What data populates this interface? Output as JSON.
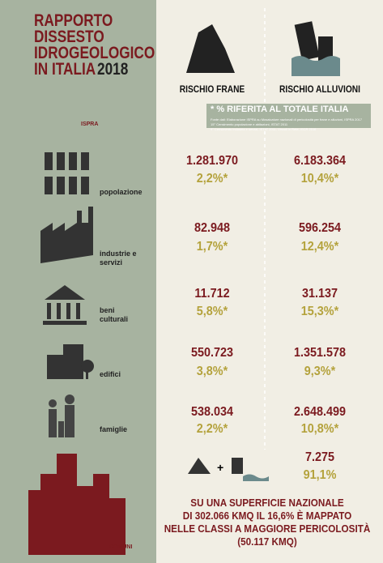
{
  "header": {
    "title_lines": [
      "RAPPORTO",
      "DISSESTO",
      "IDROGEOLOGICO",
      "IN ITALIA"
    ],
    "year": "2018",
    "logo": "ISPRA"
  },
  "columns": [
    "RISCHIO FRANE",
    "RISCHIO ALLUVIONI"
  ],
  "note": {
    "title": "* % RIFERITA AL TOTALE ITALIA",
    "sources": [
      "Fonte dati: Elaborazione ISPRA su Mosaicature nazionali di pericolosità per frane e alluvioni, ISPRA 2017",
      "15° Censimento popolazione e abitazioni, ISTAT 2011",
      "9° Censimento industria e servizi, ISTAT 2011; Vincoli in Rete, ISCR 2016"
    ]
  },
  "rows": [
    {
      "label": [
        "popolazione"
      ],
      "frane": {
        "value": "1.281.970",
        "pct": "2,2%*"
      },
      "alluvioni": {
        "value": "6.183.364",
        "pct": "10,4%*"
      }
    },
    {
      "label": [
        "industrie e",
        "servizi"
      ],
      "frane": {
        "value": "82.948",
        "pct": "1,7%*"
      },
      "alluvioni": {
        "value": "596.254",
        "pct": "12,4%*"
      }
    },
    {
      "label": [
        "beni",
        "culturali"
      ],
      "frane": {
        "value": "11.712",
        "pct": "5,8%*"
      },
      "alluvioni": {
        "value": "31.137",
        "pct": "15,3%*"
      }
    },
    {
      "label": [
        "edifici"
      ],
      "frane": {
        "value": "550.723",
        "pct": "3,8%*"
      },
      "alluvioni": {
        "value": "1.351.578",
        "pct": "9,3%*"
      }
    },
    {
      "label": [
        "famiglie"
      ],
      "frane": {
        "value": "538.034",
        "pct": "2,2%*"
      },
      "alluvioni": {
        "value": "2.648.499",
        "pct": "10,8%*"
      }
    }
  ],
  "comuni": {
    "label": "COMUNI",
    "value": "7.275",
    "pct": "91,1%",
    "text_lines": [
      "SU UNA SUPERFICIE NAZIONALE",
      "DI 302.066 KMQ IL 16,6% È MAPPATO",
      "NELLE CLASSI A MAGGIORE PERICOLOSITÀ",
      "(50.117 KMQ)"
    ]
  }
}
